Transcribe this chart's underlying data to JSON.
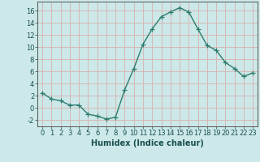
{
  "x": [
    0,
    1,
    2,
    3,
    4,
    5,
    6,
    7,
    8,
    9,
    10,
    11,
    12,
    13,
    14,
    15,
    16,
    17,
    18,
    19,
    20,
    21,
    22,
    23
  ],
  "y": [
    2.5,
    1.5,
    1.2,
    0.5,
    0.5,
    -1.0,
    -1.3,
    -1.8,
    -1.5,
    3.0,
    6.5,
    10.5,
    13.0,
    15.0,
    15.8,
    16.5,
    15.8,
    13.0,
    10.3,
    9.5,
    7.5,
    6.5,
    5.2,
    5.8
  ],
  "line_color": "#2e7d6e",
  "marker": "+",
  "marker_size": 4,
  "linewidth": 1.0,
  "xlabel": "Humidex (Indice chaleur)",
  "xlim": [
    -0.5,
    23.5
  ],
  "ylim": [
    -3,
    17.5
  ],
  "yticks": [
    -2,
    0,
    2,
    4,
    6,
    8,
    10,
    12,
    14,
    16
  ],
  "xticks": [
    0,
    1,
    2,
    3,
    4,
    5,
    6,
    7,
    8,
    9,
    10,
    11,
    12,
    13,
    14,
    15,
    16,
    17,
    18,
    19,
    20,
    21,
    22,
    23
  ],
  "grid_major_color": "#d8b0b0",
  "grid_minor_color": "#e8d0d0",
  "bg_color": "#cce8e8",
  "font_size": 6,
  "xlabel_fontsize": 7
}
